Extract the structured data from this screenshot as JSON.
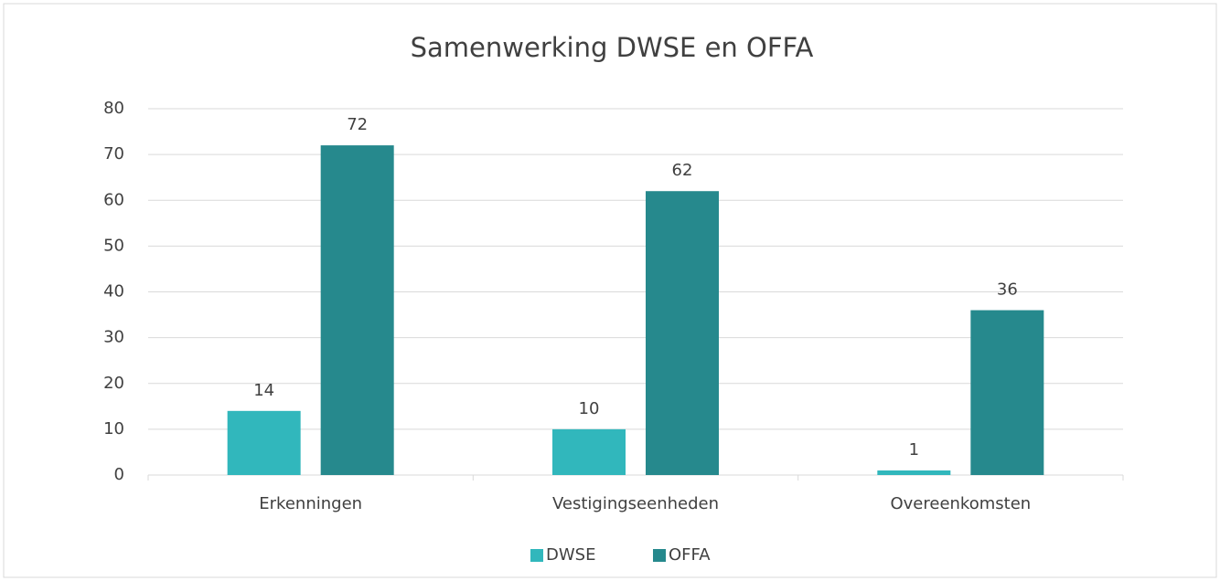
{
  "chart_data": {
    "type": "bar",
    "title": "Samenwerking DWSE en OFFA",
    "categories": [
      "Erkenningen",
      "Vestigingseenheden",
      "Overeenkomsten"
    ],
    "series": [
      {
        "name": "DWSE",
        "color": "#31b7bc",
        "values": [
          14,
          10,
          1
        ]
      },
      {
        "name": "OFFA",
        "color": "#26898d",
        "values": [
          72,
          62,
          36
        ]
      }
    ],
    "ylim": [
      0,
      80
    ],
    "yticks": [
      0,
      10,
      20,
      30,
      40,
      50,
      60,
      70,
      80
    ],
    "grid": true,
    "legend": "bottom"
  }
}
